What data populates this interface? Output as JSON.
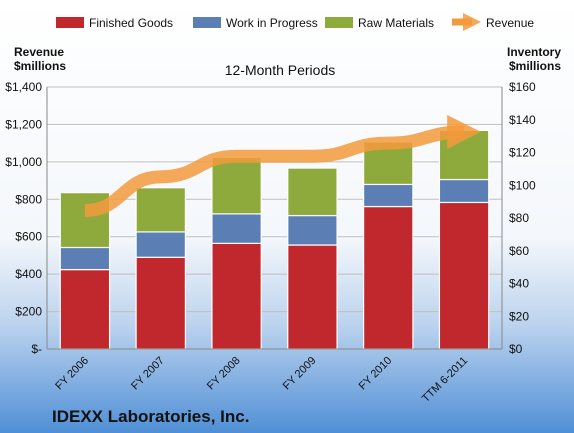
{
  "chart_data": {
    "type": "bar",
    "subtitle": "12-Month Periods",
    "footer": "IDEXX Laboratories, Inc.",
    "left_axis_label": [
      "Revenue",
      "$millions"
    ],
    "right_axis_label": [
      "Inventory",
      "$millions"
    ],
    "categories": [
      "FY 2006",
      "FY 2007",
      "FY 2008",
      "FY 2009",
      "FY 2010",
      "TTM 6-2011"
    ],
    "y_ticks_left": [
      "$-",
      "$200",
      "$400",
      "$600",
      "$800",
      "$1,000",
      "$1,200",
      "$1,400"
    ],
    "y_ticks_right": [
      "$0",
      "$20",
      "$40",
      "$60",
      "$80",
      "$100",
      "$120",
      "$140",
      "$160"
    ],
    "ylim_left": [
      0,
      1400
    ],
    "ylim_right": [
      0,
      160
    ],
    "stack_series": [
      {
        "name": "Finished Goods",
        "color": "#c0282d",
        "values": [
          48.5,
          56,
          64.5,
          63.5,
          87,
          89.5
        ]
      },
      {
        "name": "Work in Progress",
        "color": "#5b7fb5",
        "values": [
          13.5,
          15.5,
          18,
          18,
          13.5,
          14
        ]
      },
      {
        "name": "Raw Materials",
        "color": "#8faa3c",
        "values": [
          33.5,
          27,
          34.5,
          29,
          26,
          30
        ]
      }
    ],
    "line_series": {
      "name": "Revenue",
      "color": "#f39a3c",
      "values": [
        740,
        920,
        1030,
        1030,
        1100,
        1160
      ]
    },
    "legend_position": "top",
    "grid": true
  }
}
